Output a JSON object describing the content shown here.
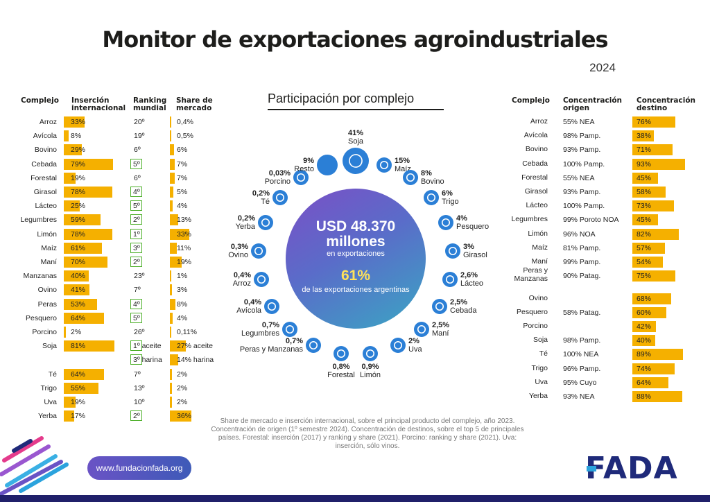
{
  "title": "Monitor de exportaciones agroindustriales",
  "year": "2024",
  "colors": {
    "bar": "#f5b000",
    "rank_box": "#4caf28",
    "node": "#2b7fd6",
    "brand": "#1f2a7a"
  },
  "left_table": {
    "headers": {
      "complejo": "Complejo",
      "insercion": "Inserción internacional",
      "ranking": "Ranking mundial",
      "share": "Share de mercado"
    },
    "rows": [
      {
        "name": "Arroz",
        "insercion": 33,
        "insercion_label": "33%",
        "ranking": "20º",
        "rank_boxed": false,
        "share": 0.4,
        "share_label": "0,4%"
      },
      {
        "name": "Avícola",
        "insercion": 8,
        "insercion_label": "8%",
        "ranking": "19º",
        "rank_boxed": false,
        "share": 0.5,
        "share_label": "0,5%"
      },
      {
        "name": "Bovino",
        "insercion": 29,
        "insercion_label": "29%",
        "ranking": "6º",
        "rank_boxed": false,
        "share": 6,
        "share_label": "6%"
      },
      {
        "name": "Cebada",
        "insercion": 79,
        "insercion_label": "79%",
        "ranking": "5º",
        "rank_boxed": true,
        "share": 7,
        "share_label": "7%"
      },
      {
        "name": "Forestal",
        "insercion": 19,
        "insercion_label": "19%",
        "ranking": "6º",
        "rank_boxed": false,
        "share": 7,
        "share_label": "7%"
      },
      {
        "name": "Girasol",
        "insercion": 78,
        "insercion_label": "78%",
        "ranking": "4º",
        "rank_boxed": true,
        "share": 5,
        "share_label": "5%"
      },
      {
        "name": "Lácteo",
        "insercion": 25,
        "insercion_label": "25%",
        "ranking": "5º",
        "rank_boxed": true,
        "share": 4,
        "share_label": "4%"
      },
      {
        "name": "Legumbres",
        "insercion": 59,
        "insercion_label": "59%",
        "ranking": "2º",
        "rank_boxed": true,
        "share": 13,
        "share_label": "13%"
      },
      {
        "name": "Limón",
        "insercion": 78,
        "insercion_label": "78%",
        "ranking": "1º",
        "rank_boxed": true,
        "share": 33,
        "share_label": "33%"
      },
      {
        "name": "Maíz",
        "insercion": 61,
        "insercion_label": "61%",
        "ranking": "3º",
        "rank_boxed": true,
        "share": 11,
        "share_label": "11%"
      },
      {
        "name": "Maní",
        "insercion": 70,
        "insercion_label": "70%",
        "ranking": "2º",
        "rank_boxed": true,
        "share": 19,
        "share_label": "19%"
      },
      {
        "name": "Manzanas",
        "insercion": 40,
        "insercion_label": "40%",
        "ranking": "23º",
        "rank_boxed": false,
        "share": 1,
        "share_label": "1%"
      },
      {
        "name": "Ovino",
        "insercion": 41,
        "insercion_label": "41%",
        "ranking": "7º",
        "rank_boxed": false,
        "share": 3,
        "share_label": "3%"
      },
      {
        "name": "Peras",
        "insercion": 53,
        "insercion_label": "53%",
        "ranking": "4º",
        "rank_boxed": true,
        "share": 8,
        "share_label": "8%"
      },
      {
        "name": "Pesquero",
        "insercion": 64,
        "insercion_label": "64%",
        "ranking": "5º",
        "rank_boxed": true,
        "share": 4,
        "share_label": "4%"
      },
      {
        "name": "Porcino",
        "insercion": 2,
        "insercion_label": "2%",
        "ranking": "26º",
        "rank_boxed": false,
        "share": 0.11,
        "share_label": "0,11%"
      },
      {
        "name": "Soja",
        "insercion": 81,
        "insercion_label": "81%",
        "ranking": "1º aceite",
        "rank_boxed": true,
        "share": 27,
        "share_label": "27% aceite",
        "ranking2": "3º harina",
        "share2": 14,
        "share2_label": "14% harina"
      },
      {
        "name": "Té",
        "insercion": 64,
        "insercion_label": "64%",
        "ranking": "7º",
        "rank_boxed": false,
        "share": 2,
        "share_label": "2%"
      },
      {
        "name": "Trigo",
        "insercion": 55,
        "insercion_label": "55%",
        "ranking": "13º",
        "rank_boxed": false,
        "share": 2,
        "share_label": "2%"
      },
      {
        "name": "Uva",
        "insercion": 19,
        "insercion_label": "19%",
        "ranking": "10º",
        "rank_boxed": false,
        "share": 2,
        "share_label": "2%"
      },
      {
        "name": "Yerba",
        "insercion": 17,
        "insercion_label": "17%",
        "ranking": "2º",
        "rank_boxed": true,
        "share": 36,
        "share_label": "36%"
      }
    ]
  },
  "participation": {
    "title": "Participación por complejo",
    "center_value": "USD 48.370 millones",
    "center_sub": "en exportaciones",
    "center_pct": "61%",
    "center_sub2": "de las exportaciones argentinas",
    "items": [
      {
        "name": "Soja",
        "pct": "41%",
        "icon": "soy-icon"
      },
      {
        "name": "Maíz",
        "pct": "15%",
        "icon": "corn-icon"
      },
      {
        "name": "Bovino",
        "pct": "8%",
        "icon": "cow-icon"
      },
      {
        "name": "Trigo",
        "pct": "6%",
        "icon": "wheat-icon"
      },
      {
        "name": "Pesquero",
        "pct": "4%",
        "icon": "fish-icon"
      },
      {
        "name": "Girasol",
        "pct": "3%",
        "icon": "sunflower-icon"
      },
      {
        "name": "Lácteo",
        "pct": "2,6%",
        "icon": "milk-icon"
      },
      {
        "name": "Cebada",
        "pct": "2,5%",
        "icon": "barley-icon"
      },
      {
        "name": "Maní",
        "pct": "2,5%",
        "icon": "peanut-icon"
      },
      {
        "name": "Uva",
        "pct": "2%",
        "icon": "grape-icon"
      },
      {
        "name": "Limón",
        "pct": "0,9%",
        "icon": "lemon-icon"
      },
      {
        "name": "Forestal",
        "pct": "0,8%",
        "icon": "tree-icon"
      },
      {
        "name": "Peras y Manzanas",
        "pct": "0,7%",
        "icon": "apple-icon"
      },
      {
        "name": "Legumbres",
        "pct": "0,7%",
        "icon": "bean-icon"
      },
      {
        "name": "Avícola",
        "pct": "0,4%",
        "icon": "chicken-icon"
      },
      {
        "name": "Arroz",
        "pct": "0,4%",
        "icon": "rice-icon"
      },
      {
        "name": "Ovino",
        "pct": "0,3%",
        "icon": "sheep-icon"
      },
      {
        "name": "Yerba",
        "pct": "0,2%",
        "icon": "yerba-icon"
      },
      {
        "name": "Té",
        "pct": "0,2%",
        "icon": "tea-icon"
      },
      {
        "name": "Porcino",
        "pct": "0,03%",
        "icon": "pig-icon"
      },
      {
        "name": "Resto",
        "pct": "9%",
        "icon": ""
      }
    ]
  },
  "right_table": {
    "headers": {
      "complejo": "Complejo",
      "origen": "Concentración origen",
      "destino": "Concentración destino"
    },
    "rows": [
      {
        "name": "Arroz",
        "origen": "55% NEA",
        "destino": 76,
        "destino_label": "76%"
      },
      {
        "name": "Avícola",
        "origen": "98% Pamp.",
        "destino": 38,
        "destino_label": "38%"
      },
      {
        "name": "Bovino",
        "origen": "93% Pamp.",
        "destino": 71,
        "destino_label": "71%"
      },
      {
        "name": "Cebada",
        "origen": "100% Pamp.",
        "destino": 93,
        "destino_label": "93%"
      },
      {
        "name": "Forestal",
        "origen": "55% NEA",
        "destino": 45,
        "destino_label": "45%"
      },
      {
        "name": "Girasol",
        "origen": "93% Pamp.",
        "destino": 58,
        "destino_label": "58%"
      },
      {
        "name": "Lácteo",
        "origen": "100% Pamp.",
        "destino": 73,
        "destino_label": "73%"
      },
      {
        "name": "Legumbres",
        "origen": "99% Poroto NOA",
        "destino": 45,
        "destino_label": "45%"
      },
      {
        "name": "Limón",
        "origen": "96% NOA",
        "destino": 82,
        "destino_label": "82%"
      },
      {
        "name": "Maíz",
        "origen": "81% Pamp.",
        "destino": 57,
        "destino_label": "57%"
      },
      {
        "name": "Maní",
        "origen": "99% Pamp.",
        "destino": 54,
        "destino_label": "54%"
      },
      {
        "name": "Peras y Manzanas",
        "origen": "90% Patag.",
        "destino": 75,
        "destino_label": "75%"
      },
      {
        "name": "Ovino",
        "origen": "",
        "destino": 68,
        "destino_label": "68%"
      },
      {
        "name": "Pesquero",
        "origen": "58% Patag.",
        "destino": 60,
        "destino_label": "60%"
      },
      {
        "name": "Porcino",
        "origen": "",
        "destino": 42,
        "destino_label": "42%"
      },
      {
        "name": "Soja",
        "origen": "98% Pamp.",
        "destino": 40,
        "destino_label": "40%"
      },
      {
        "name": "Té",
        "origen": "100% NEA",
        "destino": 89,
        "destino_label": "89%"
      },
      {
        "name": "Trigo",
        "origen": "96% Pamp.",
        "destino": 74,
        "destino_label": "74%"
      },
      {
        "name": "Uva",
        "origen": "95% Cuyo",
        "destino": 64,
        "destino_label": "64%"
      },
      {
        "name": "Yerba",
        "origen": "93% NEA",
        "destino": 88,
        "destino_label": "88%"
      }
    ]
  },
  "chart_data": [
    {
      "type": "bar",
      "title": "Inserción internacional",
      "categories": [
        "Arroz",
        "Avícola",
        "Bovino",
        "Cebada",
        "Forestal",
        "Girasol",
        "Lácteo",
        "Legumbres",
        "Limón",
        "Maíz",
        "Maní",
        "Manzanas",
        "Ovino",
        "Peras",
        "Pesquero",
        "Porcino",
        "Soja",
        "Té",
        "Trigo",
        "Uva",
        "Yerba"
      ],
      "values": [
        33,
        8,
        29,
        79,
        19,
        78,
        25,
        59,
        78,
        61,
        70,
        40,
        41,
        53,
        64,
        2,
        81,
        64,
        55,
        19,
        17
      ]
    },
    {
      "type": "bar",
      "title": "Concentración destino",
      "categories": [
        "Arroz",
        "Avícola",
        "Bovino",
        "Cebada",
        "Forestal",
        "Girasol",
        "Lácteo",
        "Legumbres",
        "Limón",
        "Maíz",
        "Maní",
        "Peras y Manzanas",
        "Ovino",
        "Pesquero",
        "Porcino",
        "Soja",
        "Té",
        "Trigo",
        "Uva",
        "Yerba"
      ],
      "values": [
        76,
        38,
        71,
        93,
        45,
        58,
        73,
        45,
        82,
        57,
        54,
        75,
        68,
        60,
        42,
        40,
        89,
        74,
        64,
        88
      ]
    }
  ],
  "footnote": "Share de mercado e inserción internacional, sobre el principal producto del complejo, año 2023. Concentración de origen (1º semestre 2024). Concentración de destinos, sobre el top 5 de principales países. Forestal: inserción (2017) y ranking y share (2021). Porcino: ranking y share (2021). Uva: inserción, sólo vinos.",
  "url": "www.fundacionfada.org",
  "brand": "FADA"
}
